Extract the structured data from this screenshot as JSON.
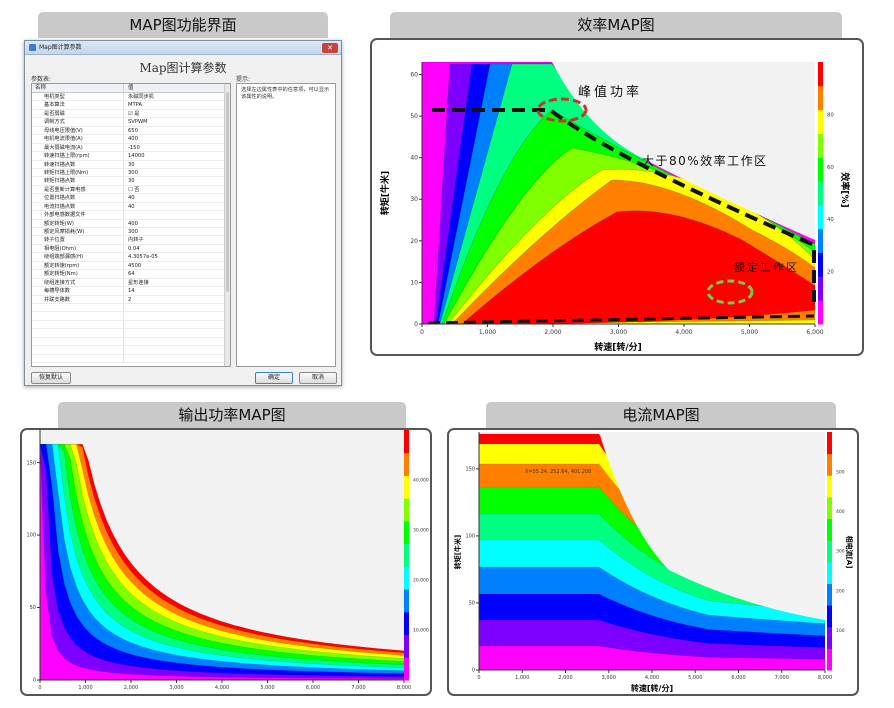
{
  "panels": {
    "dialog_tab": "MAP图功能界面",
    "efficiency_tab": "效率MAP图",
    "output_tab": "输出功率MAP图",
    "current_tab": "电流MAP图"
  },
  "dialog": {
    "window_title": "Map图计算参数",
    "heading": "Map图计算参数",
    "params_label": "参数表:",
    "hint_label": "提示:",
    "col_name": "名称",
    "col_value": "值",
    "hint_text": "选择左边属性表中的任意项，可以显示该属性的说明。",
    "rows": [
      {
        "name": "电机类型",
        "value": "永磁同步机"
      },
      {
        "name": "基本算法",
        "value": "MTPA"
      },
      {
        "name": "是否弱磁",
        "value": "☑ 是"
      },
      {
        "name": "调制方式",
        "value": "SVPWM"
      },
      {
        "name": "母线电压限值(V)",
        "value": "650"
      },
      {
        "name": "电机电流限值(A)",
        "value": "400"
      },
      {
        "name": "最大弱磁电流(A)",
        "value": "-150"
      },
      {
        "name": "转速扫描上限(rpm)",
        "value": "14000"
      },
      {
        "name": "转速扫描点数",
        "value": "30"
      },
      {
        "name": "转矩扫描上限(Nm)",
        "value": "300"
      },
      {
        "name": "转矩扫描点数",
        "value": "30"
      },
      {
        "name": "是否重新计算电感",
        "value": "☐ 否"
      },
      {
        "name": "位置扫描点数",
        "value": "40"
      },
      {
        "name": "电流扫描点数",
        "value": "40"
      },
      {
        "name": "外部电感数据文件",
        "value": ""
      },
      {
        "name": "额定转矩(W)",
        "value": "400"
      },
      {
        "name": "额定风摩损耗(W)",
        "value": "300"
      },
      {
        "name": "转子位置",
        "value": "内转子"
      },
      {
        "name": "相电阻(Ohm)",
        "value": "0.04"
      },
      {
        "name": "绕组端部漏感(H)",
        "value": "4.3057e-05"
      },
      {
        "name": "额定转速(rpm)",
        "value": "4500"
      },
      {
        "name": "额定转矩(Nm)",
        "value": "64"
      },
      {
        "name": "绕组连接方式",
        "value": "星形连接"
      },
      {
        "name": "每槽导体数",
        "value": "14"
      },
      {
        "name": "并联支路数",
        "value": "2"
      },
      {
        "name": "",
        "value": ""
      },
      {
        "name": "",
        "value": ""
      },
      {
        "name": "",
        "value": ""
      },
      {
        "name": "",
        "value": ""
      },
      {
        "name": "",
        "value": ""
      },
      {
        "name": "",
        "value": ""
      },
      {
        "name": "",
        "value": ""
      }
    ],
    "restore_button": "恢复默认",
    "ok_button": "确定",
    "cancel_button": "取消"
  },
  "efficiency_map": {
    "xlabel": "转速[转/分]",
    "ylabel": "转矩[牛米]",
    "colorbar_label": "效率[%]",
    "x_ticks": [
      "0",
      "1,000",
      "2,000",
      "3,000",
      "4,000",
      "5,000",
      "6,000"
    ],
    "y_ticks": [
      "0",
      "10",
      "20",
      "30",
      "40",
      "50",
      "60"
    ],
    "colorbar_ticks": [
      "20",
      "40",
      "60",
      "80"
    ],
    "annotation_peak": "峰值功率",
    "annotation_80": "大于80%效率工作区",
    "annotation_rated": "额定工作区"
  },
  "output_map": {
    "x_ticks": [
      "0",
      "1,000",
      "2,000",
      "3,000",
      "4,000",
      "5,000",
      "6,000",
      "7,000",
      "8,000"
    ],
    "y_ticks": [
      "0",
      "50",
      "100",
      "150"
    ],
    "colorbar_ticks": [
      "10,000",
      "20,000",
      "30,000",
      "40,000"
    ]
  },
  "current_map": {
    "xlabel": "转速[转/分]",
    "ylabel": "转矩[牛米]",
    "colorbar_label": "相电流[A]",
    "x_ticks": [
      "0",
      "1,000",
      "2,000",
      "3,000",
      "4,000",
      "5,000",
      "6,000",
      "7,000",
      "8,000"
    ],
    "y_ticks": [
      "0",
      "50",
      "100",
      "150"
    ],
    "colorbar_ticks": [
      "100",
      "200",
      "300",
      "400",
      "500"
    ],
    "readout": "X=55.24, 252.64, 401.200"
  },
  "colors": {
    "palette": [
      "#ff00ff",
      "#7d00ff",
      "#0000ff",
      "#0080ff",
      "#00ffff",
      "#00ff80",
      "#00ff00",
      "#80ff00",
      "#ffff00",
      "#ff8000",
      "#ff0000"
    ]
  }
}
